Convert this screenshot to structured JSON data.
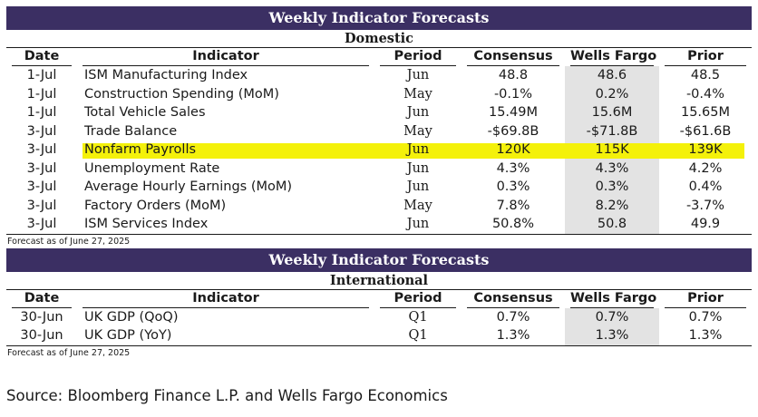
{
  "title": "Weekly Indicator Forecasts",
  "columns": {
    "date": "Date",
    "indicator": "Indicator",
    "period": "Period",
    "consensus": "Consensus",
    "wells_fargo": "Wells Fargo",
    "prior": "Prior"
  },
  "domestic": {
    "subtitle": "Domestic",
    "rows": [
      {
        "date": "1-Jul",
        "indicator": "ISM Manufacturing Index",
        "period": "Jun",
        "consensus": "48.8",
        "wells_fargo": "48.6",
        "prior": "48.5"
      },
      {
        "date": "1-Jul",
        "indicator": "Construction Spending (MoM)",
        "period": "May",
        "consensus": "-0.1%",
        "wells_fargo": "0.2%",
        "prior": "-0.4%"
      },
      {
        "date": "1-Jul",
        "indicator": "Total Vehicle Sales",
        "period": "Jun",
        "consensus": "15.49M",
        "wells_fargo": "15.6M",
        "prior": "15.65M"
      },
      {
        "date": "3-Jul",
        "indicator": "Trade Balance",
        "period": "May",
        "consensus": "-$69.8B",
        "wells_fargo": "-$71.8B",
        "prior": "-$61.6B"
      },
      {
        "date": "3-Jul",
        "indicator": "Nonfarm Payrolls",
        "period": "Jun",
        "consensus": "120K",
        "wells_fargo": "115K",
        "prior": "139K"
      },
      {
        "date": "3-Jul",
        "indicator": "Unemployment Rate",
        "period": "Jun",
        "consensus": "4.3%",
        "wells_fargo": "4.3%",
        "prior": "4.2%"
      },
      {
        "date": "3-Jul",
        "indicator": "Average Hourly Earnings (MoM)",
        "period": "Jun",
        "consensus": "0.3%",
        "wells_fargo": "0.3%",
        "prior": "0.4%"
      },
      {
        "date": "3-Jul",
        "indicator": "Factory Orders (MoM)",
        "period": "May",
        "consensus": "7.8%",
        "wells_fargo": "8.2%",
        "prior": "-3.7%"
      },
      {
        "date": "3-Jul",
        "indicator": "ISM Services Index",
        "period": "Jun",
        "consensus": "50.8%",
        "wells_fargo": "50.8",
        "prior": "49.9"
      }
    ],
    "note": "Forecast as of June 27, 2025"
  },
  "international": {
    "subtitle": "International",
    "rows": [
      {
        "date": "30-Jun",
        "indicator": "UK GDP (QoQ)",
        "period": "Q1",
        "consensus": "0.7%",
        "wells_fargo": "0.7%",
        "prior": "0.7%"
      },
      {
        "date": "30-Jun",
        "indicator": "UK GDP (YoY)",
        "period": "Q1",
        "consensus": "1.3%",
        "wells_fargo": "1.3%",
        "prior": "1.3%"
      }
    ],
    "note": "Forecast as of June 27, 2025"
  },
  "source": "Source: Bloomberg Finance L.P. and Wells Fargo Economics",
  "colors": {
    "banner": "#3b2f63",
    "wells_fargo_column": "#e3e3e3",
    "highlight": "#f4f10a"
  }
}
